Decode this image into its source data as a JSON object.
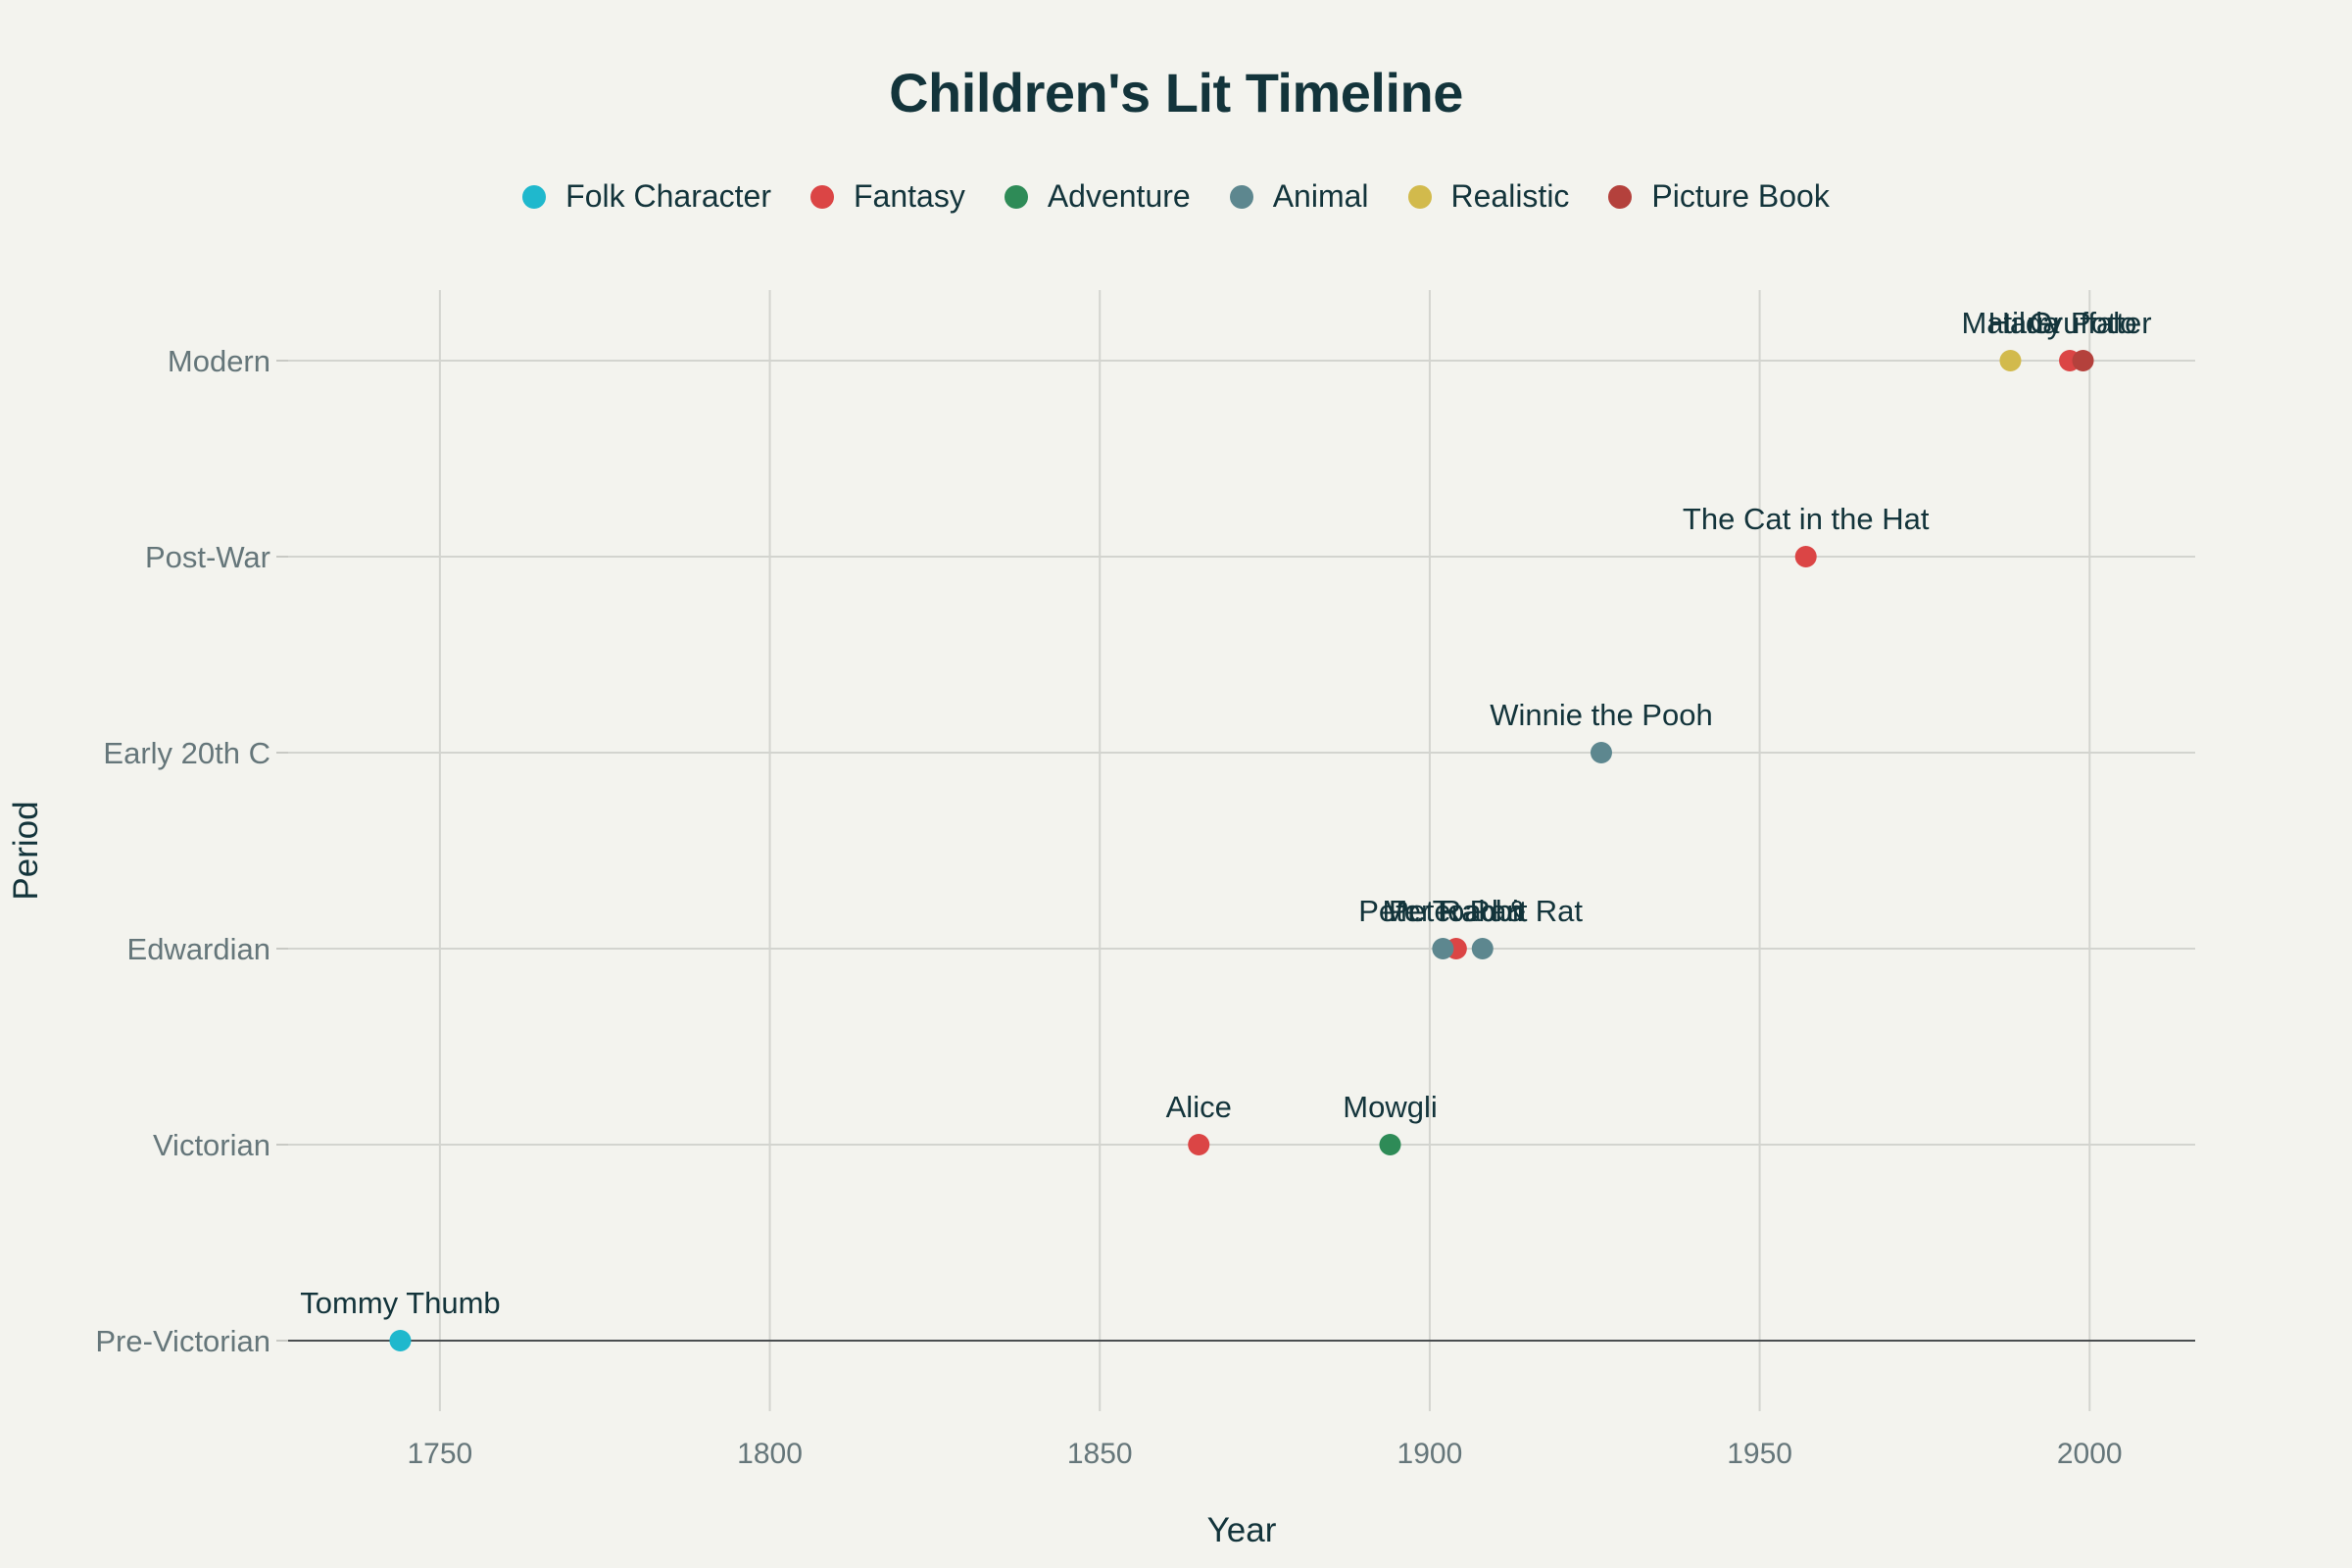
{
  "chart_data": {
    "type": "scatter",
    "title": "Children's Lit Timeline",
    "xlabel": "Year",
    "ylabel": "Period",
    "xlim": [
      1727,
      2016
    ],
    "xticks": [
      1750,
      1800,
      1850,
      1900,
      1950,
      2000
    ],
    "categories": [
      "Pre-Victorian",
      "Victorian",
      "Edwardian",
      "Early 20th C",
      "Post-War",
      "Modern"
    ],
    "grid": true,
    "legend_position": "top",
    "series": [
      {
        "name": "Folk Character",
        "color": "#1fb8cd",
        "points": [
          {
            "label": "Tommy Thumb",
            "x": 1744,
            "y": "Pre-Victorian"
          }
        ]
      },
      {
        "name": "Fantasy",
        "color": "#db4545",
        "points": [
          {
            "label": "Alice",
            "x": 1865,
            "y": "Victorian"
          },
          {
            "label": "Peter Pan",
            "x": 1904,
            "y": "Edwardian"
          },
          {
            "label": "The Cat in the Hat",
            "x": 1957,
            "y": "Post-War"
          },
          {
            "label": "Harry Potter",
            "x": 1997,
            "y": "Modern"
          }
        ]
      },
      {
        "name": "Adventure",
        "color": "#2e8b57",
        "points": [
          {
            "label": "Mowgli",
            "x": 1894,
            "y": "Victorian"
          }
        ]
      },
      {
        "name": "Animal",
        "color": "#5d878f",
        "points": [
          {
            "label": "Peter Rabbit",
            "x": 1902,
            "y": "Edwardian"
          },
          {
            "label": "Mr. Toad & Rat",
            "x": 1908,
            "y": "Edwardian"
          },
          {
            "label": "Winnie the Pooh",
            "x": 1926,
            "y": "Early 20th C"
          }
        ]
      },
      {
        "name": "Realistic",
        "color": "#d2ba4c",
        "points": [
          {
            "label": "Matilda",
            "x": 1988,
            "y": "Modern"
          }
        ]
      },
      {
        "name": "Picture Book",
        "color": "#b4413c",
        "points": [
          {
            "label": "Gruffalo",
            "x": 1999,
            "y": "Modern"
          }
        ]
      }
    ]
  }
}
